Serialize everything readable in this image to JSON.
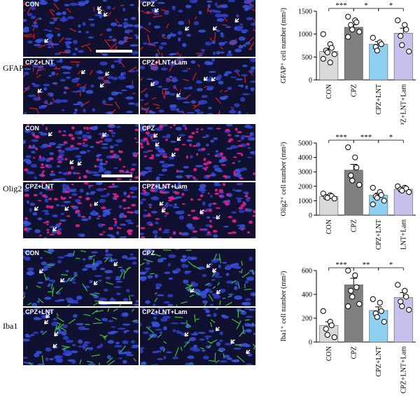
{
  "rows": [
    {
      "stain": "GFAP",
      "fluor_color": "#e0201f",
      "panel_labels": [
        "CON",
        "CPZ",
        "CPZ+LNT",
        "CPZ+LNT+Lam"
      ],
      "chart": {
        "ylabel": "GFAP⁺ cell number (mm²)"
      }
    },
    {
      "stain": "Olig2",
      "fluor_color": "#e0208a",
      "panel_labels": [
        "CON",
        "CPZ",
        "CPZ+LNT",
        "CPZ+LNT+Lam"
      ],
      "chart": {
        "ylabel": "Olig2⁺ cell number (mm²)"
      }
    },
    {
      "stain": "Iba1",
      "fluor_color": "#3ec83a",
      "panel_labels": [
        "CON",
        "CPZ",
        "CPZ+LNT",
        "CPZ+LNT+Lam"
      ],
      "chart": {
        "ylabel": "Iba1⁺ cell number (mm²)"
      }
    }
  ],
  "chart_data": [
    {
      "type": "bar",
      "categories": [
        "CON",
        "CPZ",
        "CPZ+LNT",
        "CPZ+LNT+Lam"
      ],
      "bar_colors": [
        "#d9d9d9",
        "#7f7f7f",
        "#8fd0f0",
        "#c8c0ec"
      ],
      "values": [
        620,
        1150,
        780,
        1020
      ],
      "errors": [
        70,
        55,
        55,
        110
      ],
      "points": [
        [
          1000,
          780,
          700,
          640,
          600,
          560,
          460,
          380
        ],
        [
          1380,
          1300,
          1260,
          1200,
          1100,
          1050,
          940
        ],
        [
          920,
          820,
          780,
          720,
          640
        ],
        [
          1300,
          1200,
          1100,
          960,
          760,
          620
        ]
      ],
      "ylim": [
        0,
        1500
      ],
      "yticks": [
        0,
        500,
        1000,
        1500
      ],
      "ylabel": "GFAP⁺ cell number (mm²)",
      "significance": [
        {
          "from": 0,
          "to": 1,
          "label": "***"
        },
        {
          "from": 1,
          "to": 2,
          "label": "*"
        },
        {
          "from": 2,
          "to": 3,
          "label": "*"
        }
      ]
    },
    {
      "type": "bar",
      "categories": [
        "CON",
        "CPZ",
        "CPZ+LNT",
        "CPZ+LNT+Lam"
      ],
      "bar_colors": [
        "#d9d9d9",
        "#7f7f7f",
        "#8fd0f0",
        "#c8c0ec"
      ],
      "values": [
        1300,
        3120,
        1380,
        1800
      ],
      "errors": [
        80,
        400,
        150,
        80
      ],
      "points": [
        [
          1500,
          1380,
          1320,
          1250,
          1200,
          1150
        ],
        [
          4700,
          4000,
          3300,
          2750,
          2400,
          2100
        ],
        [
          1900,
          1600,
          1400,
          1300,
          1200,
          1000,
          750
        ],
        [
          2000,
          1900,
          1850,
          1780,
          1700,
          1600
        ]
      ],
      "ylim": [
        0,
        5000
      ],
      "yticks": [
        0,
        1000,
        2000,
        3000,
        4000,
        5000
      ],
      "ylabel": "Olig2⁺ cell number (mm²)",
      "significance": [
        {
          "from": 0,
          "to": 1,
          "label": "***"
        },
        {
          "from": 1,
          "to": 2,
          "label": "***"
        },
        {
          "from": 2,
          "to": 3,
          "label": "*"
        }
      ]
    },
    {
      "type": "bar",
      "categories": [
        "CON",
        "CPZ",
        "CPZ+LNT",
        "CPZ+LNT+Lam"
      ],
      "bar_colors": [
        "#d9d9d9",
        "#7f7f7f",
        "#8fd0f0",
        "#c8c0ec"
      ],
      "values": [
        140,
        480,
        265,
        375
      ],
      "errors": [
        30,
        55,
        30,
        40
      ],
      "points": [
        [
          260,
          170,
          140,
          110,
          60,
          40
        ],
        [
          600,
          560,
          460,
          430,
          380,
          320,
          300
        ],
        [
          360,
          330,
          260,
          240,
          210,
          170
        ],
        [
          480,
          430,
          380,
          340,
          300,
          270
        ]
      ],
      "ylim": [
        0,
        600
      ],
      "yticks": [
        0,
        200,
        400,
        600
      ],
      "ylabel": "Iba1⁺ cell number (mm²)",
      "significance": [
        {
          "from": 0,
          "to": 1,
          "label": "***"
        },
        {
          "from": 1,
          "to": 2,
          "label": "**"
        },
        {
          "from": 2,
          "to": 3,
          "label": "*"
        }
      ]
    }
  ]
}
